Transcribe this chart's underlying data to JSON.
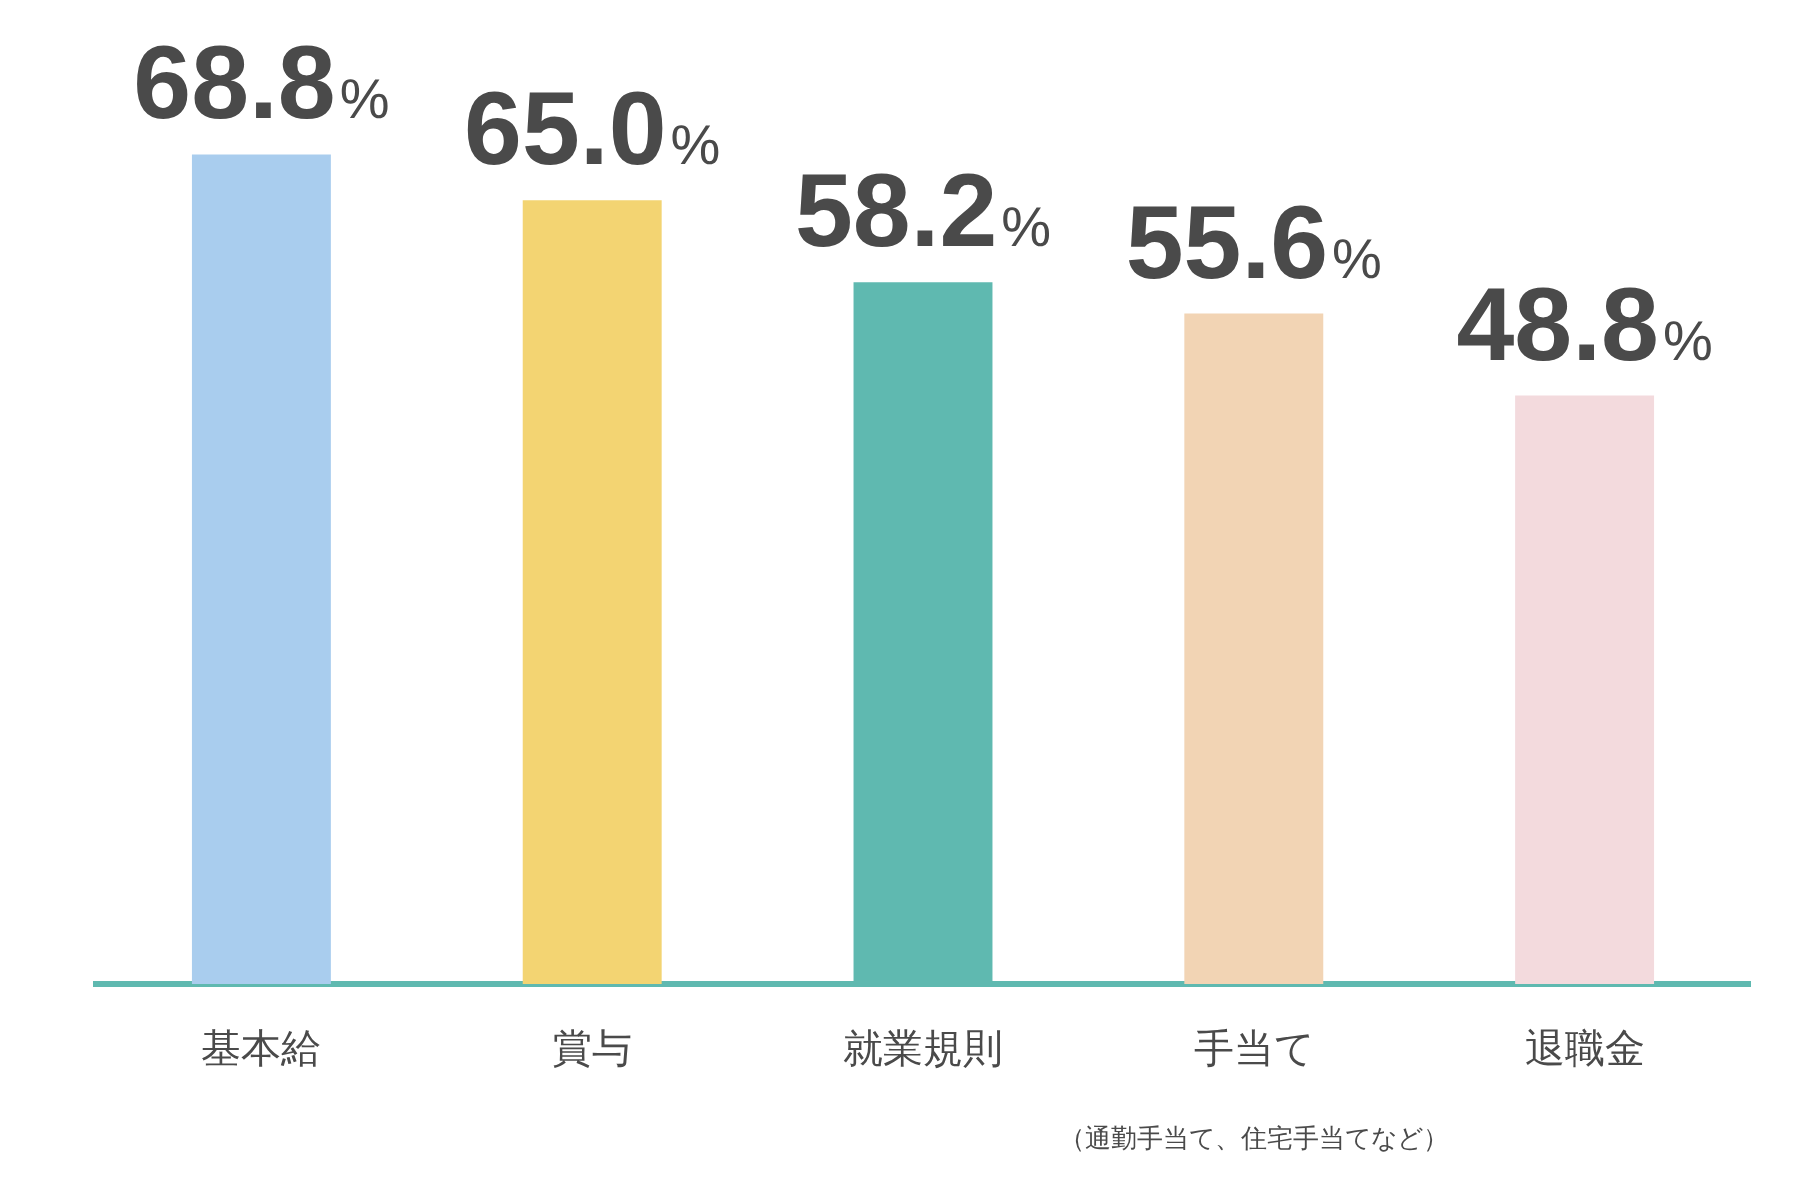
{
  "chart_data": {
    "type": "bar",
    "categories": [
      "基本給",
      "賞与",
      "就業規則",
      "手当て",
      "退職金"
    ],
    "values": [
      68.8,
      65.0,
      58.2,
      55.6,
      48.8
    ],
    "value_labels": [
      "68.8%",
      "65.0%",
      "58.2%",
      "55.6%",
      "48.8%"
    ],
    "colors": [
      "#a9cdee",
      "#f3d472",
      "#5fb9b0",
      "#f2d4b4",
      "#f3dadd"
    ],
    "annotations": [
      "（通勤手当て、住宅手当てなど）"
    ]
  }
}
